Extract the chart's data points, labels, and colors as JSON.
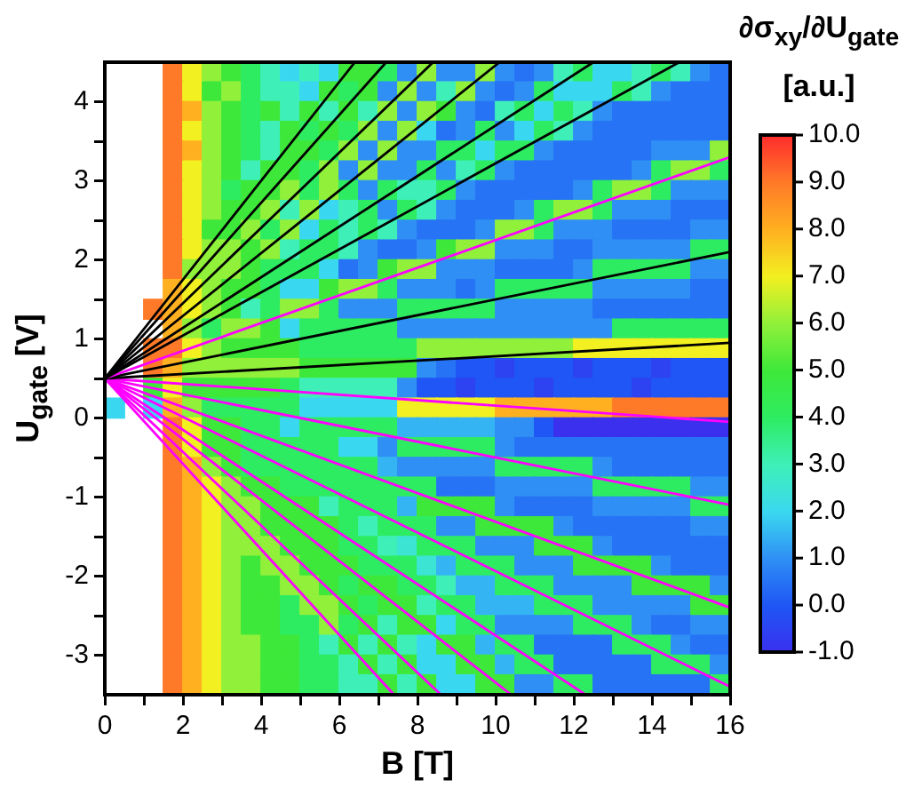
{
  "chart_data": {
    "type": "heatmap",
    "xlabel": "B [T]",
    "ylabel": "U$_{gate}$ [V]",
    "clabel": "∂σ$_{xy}$/∂U$_{gate}$ [a.u.]",
    "x": [
      0.25,
      0.75,
      1.25,
      1.75,
      2.25,
      2.75,
      3.25,
      3.75,
      4.25,
      4.75,
      5.25,
      5.75,
      6.25,
      6.75,
      7.25,
      7.75,
      8.25,
      8.75,
      9.25,
      9.75,
      10.25,
      10.75,
      11.25,
      11.75,
      12.25,
      12.75,
      13.25,
      13.75,
      14.25,
      14.75,
      15.25,
      15.75
    ],
    "y": [
      4.375,
      4.125,
      3.875,
      3.625,
      3.375,
      3.125,
      2.875,
      2.625,
      2.375,
      2.125,
      1.875,
      1.625,
      1.375,
      1.125,
      0.875,
      0.625,
      0.375,
      0.125,
      -0.125,
      -0.375,
      -0.625,
      -0.875,
      -1.125,
      -1.375,
      -1.625,
      -1.875,
      -2.125,
      -2.375,
      -2.625,
      -2.875,
      -3.125,
      -3.375
    ],
    "xlim": [
      0,
      16
    ],
    "ylim": [
      -3.5,
      4.5
    ],
    "xticks": [
      0,
      {
        "value": 1,
        "label": null
      },
      2,
      {
        "value": 3,
        "label": null
      },
      4,
      {
        "value": 5,
        "label": null
      },
      6,
      {
        "value": 7,
        "label": null
      },
      8,
      {
        "value": 9,
        "label": null
      },
      10,
      {
        "value": 11,
        "label": null
      },
      12,
      {
        "value": 13,
        "label": null
      },
      14,
      {
        "value": 15,
        "label": null
      },
      16
    ],
    "yticks": [
      -3,
      {
        "value": -2.5,
        "label": null
      },
      -2,
      {
        "value": -1.5,
        "label": null
      },
      -1,
      {
        "value": -0.5,
        "label": null
      },
      0,
      {
        "value": 0.5,
        "label": null
      },
      1,
      {
        "value": 1.5,
        "label": null
      },
      2,
      {
        "value": 2.5,
        "label": null
      },
      3,
      {
        "value": 3.5,
        "label": null
      },
      4
    ],
    "clim": [
      -1,
      10
    ],
    "cticks": [
      {
        "value": -1,
        "label": "-1.0"
      },
      {
        "value": 0,
        "label": "0.0"
      },
      {
        "value": 1,
        "label": "1.0"
      },
      {
        "value": 2,
        "label": "2.0"
      },
      {
        "value": 3,
        "label": "3.0"
      },
      {
        "value": 4,
        "label": "4.0"
      },
      {
        "value": 5,
        "label": "5.0"
      },
      {
        "value": 6,
        "label": "6.0"
      },
      {
        "value": 7,
        "label": "7.0"
      },
      {
        "value": 8,
        "label": "8.0"
      },
      {
        "value": 9,
        "label": "9.0"
      },
      {
        "value": 10,
        "label": "10.0"
      }
    ],
    "marker": "none",
    "cells": [
      [
        null,
        null,
        null,
        9,
        7,
        6,
        5,
        4,
        3,
        2,
        3,
        2,
        5,
        5,
        4,
        1,
        6,
        1,
        1,
        6,
        1,
        0.5,
        1,
        3,
        4,
        2,
        2,
        3,
        4,
        3,
        1,
        0.5
      ],
      [
        null,
        null,
        null,
        9,
        7,
        5,
        6,
        4,
        3,
        3,
        2,
        5,
        4,
        5,
        1,
        6,
        1,
        3,
        6,
        1,
        0.5,
        1,
        4,
        2,
        2,
        2,
        4,
        3,
        1,
        0.5,
        0.5,
        0.5
      ],
      [
        null,
        null,
        null,
        9,
        8,
        6,
        5,
        4,
        5,
        3,
        5,
        3,
        5,
        3,
        6,
        1,
        6,
        5,
        1,
        0.5,
        3,
        4,
        2,
        4,
        3,
        1,
        0.5,
        0.5,
        0.5,
        0.5,
        0.5,
        0.5
      ],
      [
        null,
        null,
        null,
        9,
        7,
        6,
        5,
        4,
        3,
        5,
        4,
        5,
        4,
        6,
        1,
        6,
        2,
        0.5,
        1,
        4,
        1,
        2,
        4,
        3,
        1,
        0.5,
        0.5,
        0.5,
        0.5,
        0.5,
        0.5,
        0.5
      ],
      [
        null,
        null,
        null,
        9,
        8,
        6,
        5,
        4,
        3,
        5,
        5,
        4,
        6,
        1,
        6,
        1,
        1,
        4,
        4,
        2,
        4,
        4,
        1,
        0.5,
        0.5,
        0.5,
        0.5,
        0.5,
        1,
        1,
        1,
        6
      ],
      [
        null,
        null,
        null,
        9,
        7,
        6,
        5,
        3,
        5,
        5,
        4,
        6,
        1,
        6,
        1,
        1,
        4,
        1,
        3,
        4,
        1,
        0.5,
        0.5,
        0.5,
        0.5,
        0.5,
        0.5,
        1,
        4,
        6,
        6,
        4
      ],
      [
        null,
        null,
        null,
        9,
        7,
        6,
        4,
        5,
        5,
        6,
        4,
        6,
        4,
        1,
        4,
        3,
        3,
        4,
        1,
        0.5,
        0.5,
        0.5,
        0.5,
        0.5,
        1,
        4,
        6,
        6,
        4,
        1,
        1,
        1
      ],
      [
        null,
        null,
        null,
        9,
        7,
        6,
        5,
        5,
        6,
        3,
        6,
        2,
        3,
        4,
        1,
        4,
        3,
        1,
        0.5,
        0.5,
        0.5,
        1,
        4,
        6,
        6,
        4,
        1,
        1,
        1,
        0.5,
        0.5,
        0.5
      ],
      [
        null,
        null,
        null,
        9,
        7,
        5,
        5,
        6,
        4,
        6,
        2,
        4,
        3,
        4,
        3,
        1,
        0.5,
        0.5,
        0.5,
        1,
        6,
        6,
        4,
        1,
        1,
        1,
        0.5,
        0.5,
        0.5,
        0.5,
        1,
        1
      ],
      [
        null,
        null,
        null,
        9,
        7,
        6,
        6,
        5,
        6,
        3,
        4,
        4,
        3,
        1,
        0.5,
        0.5,
        1,
        5,
        6,
        6,
        1,
        1,
        1,
        0.5,
        0.5,
        1,
        1,
        1,
        1,
        1,
        4,
        4
      ],
      [
        null,
        null,
        null,
        9,
        6,
        6,
        6,
        5,
        4,
        4,
        4,
        2,
        0.5,
        1,
        5,
        6,
        6,
        1,
        1,
        1,
        0.5,
        0.5,
        0.5,
        0.5,
        1,
        4,
        4,
        4,
        4,
        4,
        1,
        1
      ],
      [
        null,
        null,
        null,
        8,
        7,
        6,
        5,
        5,
        4,
        2,
        2,
        5,
        6,
        6,
        4,
        1,
        1,
        1,
        0.5,
        1,
        4,
        4,
        4,
        4,
        4,
        1,
        1,
        1,
        1,
        1,
        0.5,
        0.5
      ],
      [
        null,
        null,
        9,
        8,
        7,
        6,
        5,
        3,
        4,
        6,
        6,
        4,
        1,
        1,
        1,
        4,
        4,
        4,
        4,
        4,
        1,
        1,
        1,
        1,
        1,
        0.5,
        0.5,
        0.5,
        0.5,
        0.5,
        0.5,
        0.5
      ],
      [
        null,
        null,
        null,
        8,
        6,
        4,
        6,
        6,
        5,
        2,
        4,
        4,
        4,
        4,
        4,
        1,
        1,
        1,
        1,
        1,
        1,
        1,
        1,
        1,
        1,
        1,
        4,
        4,
        4,
        4,
        4,
        4
      ],
      [
        null,
        null,
        9,
        9,
        7,
        6,
        5,
        5,
        5,
        5,
        4,
        4,
        4,
        4,
        4,
        4,
        6,
        6,
        6,
        6,
        6,
        6,
        6,
        6,
        7,
        7,
        7,
        7,
        7,
        7,
        7,
        7
      ],
      [
        null,
        null,
        9,
        8,
        6,
        6,
        6,
        6,
        6,
        6,
        5,
        5,
        5,
        5,
        5,
        5,
        1,
        0.5,
        0,
        0,
        -0.5,
        0,
        0,
        0,
        -0.5,
        0,
        0,
        0,
        -0.5,
        0,
        0,
        0
      ],
      [
        null,
        null,
        5,
        7,
        5,
        5,
        5,
        5,
        5,
        4,
        3,
        3,
        3,
        3,
        3,
        1,
        0,
        0,
        -0.5,
        0,
        0,
        0,
        -0.5,
        0,
        0,
        0,
        0,
        -0.5,
        0,
        0,
        0,
        0
      ],
      [
        2,
        null,
        2,
        8,
        6,
        4,
        4,
        4,
        4,
        4,
        2,
        2,
        2,
        2,
        2,
        7,
        7,
        7,
        7,
        7,
        8,
        8,
        8,
        8,
        8,
        8,
        9,
        9,
        9,
        9,
        9,
        9
      ],
      [
        null,
        null,
        null,
        9,
        7,
        5,
        5,
        4,
        4,
        2,
        4,
        4,
        4,
        4,
        4,
        1.5,
        1.5,
        1.5,
        1.5,
        1.5,
        1,
        1,
        0,
        -1,
        -1,
        -1,
        -1,
        -1,
        -1,
        -1,
        -1,
        -1
      ],
      [
        null,
        null,
        null,
        9,
        7,
        5,
        5,
        4,
        4,
        4,
        4,
        4,
        2,
        2,
        1,
        4,
        4,
        4,
        4,
        4,
        1,
        0.5,
        0.5,
        0.5,
        0.5,
        0.5,
        0.5,
        0.5,
        0.5,
        0.5,
        0.5,
        0.5
      ],
      [
        null,
        null,
        null,
        9,
        8,
        6,
        5,
        4,
        4,
        4,
        4,
        4,
        4,
        4,
        1.5,
        1,
        1,
        1,
        1,
        1,
        4,
        4,
        4,
        4,
        4,
        1,
        0.5,
        0.5,
        0.5,
        0.5,
        0.5,
        0.5
      ],
      [
        null,
        null,
        null,
        9,
        8,
        7,
        6,
        5,
        5,
        4,
        4,
        4,
        4,
        4,
        4,
        4,
        4,
        0.5,
        0.5,
        0.5,
        1,
        1,
        1,
        1,
        1,
        4,
        4,
        4,
        4,
        4,
        1,
        1
      ],
      [
        null,
        null,
        null,
        9,
        8,
        7,
        6,
        6,
        5,
        5,
        5,
        3,
        4,
        4,
        4,
        1.5,
        5,
        5,
        5,
        5,
        1,
        0.5,
        0.5,
        0.5,
        0.5,
        1,
        1,
        1,
        1,
        1,
        4,
        4
      ],
      [
        null,
        null,
        null,
        9,
        8,
        7,
        6,
        6,
        5,
        5,
        5,
        5,
        4,
        3,
        4,
        4,
        4,
        1,
        1,
        5,
        5,
        5,
        5,
        1,
        0.5,
        0.5,
        0.5,
        0.5,
        0.5,
        0.5,
        1,
        1
      ],
      [
        null,
        null,
        null,
        9,
        8,
        7,
        6,
        6,
        6,
        5,
        5,
        5,
        4,
        4,
        3,
        2.5,
        4,
        4,
        4,
        1,
        1,
        1,
        5,
        5,
        5,
        1,
        0.5,
        0.5,
        0.5,
        0.5,
        0.5,
        0.5
      ],
      [
        null,
        null,
        null,
        9,
        8,
        7,
        6,
        5,
        6,
        6,
        5,
        5,
        5,
        4,
        4,
        4,
        2.5,
        1.5,
        4,
        4,
        4,
        1,
        1,
        1,
        5,
        5,
        5,
        5,
        1,
        0.5,
        0.5,
        0.5
      ],
      [
        null,
        null,
        null,
        9,
        8,
        7,
        6,
        5,
        5,
        6,
        6,
        5,
        4,
        5,
        5,
        4,
        4,
        3,
        1.5,
        1.5,
        4,
        4,
        4,
        1,
        1,
        1,
        1,
        5,
        5,
        5,
        5,
        1
      ],
      [
        null,
        null,
        null,
        9,
        8,
        7,
        6,
        5,
        5,
        4,
        6,
        6,
        5,
        4,
        5,
        5,
        3,
        4,
        4,
        1.5,
        1.5,
        1.5,
        4,
        4,
        4,
        1,
        1,
        1,
        1,
        1,
        5,
        5
      ],
      [
        null,
        null,
        null,
        9,
        8,
        7,
        6,
        5,
        5,
        4,
        4,
        6,
        4,
        5,
        3,
        5,
        5,
        2,
        4,
        4,
        1,
        1,
        1,
        1,
        4,
        4,
        4,
        1,
        0.5,
        0.5,
        1,
        1
      ],
      [
        null,
        null,
        null,
        9,
        8,
        7,
        6,
        6,
        5,
        5,
        4,
        3,
        5,
        3,
        5,
        3,
        2,
        5,
        5,
        1.5,
        4,
        4,
        0.5,
        0.5,
        0.5,
        0.5,
        4,
        4,
        4,
        1,
        0.5,
        0.5
      ],
      [
        null,
        null,
        null,
        9,
        8,
        7,
        6,
        6,
        5,
        5,
        4,
        4,
        3,
        5,
        3,
        5,
        2,
        2,
        5,
        5,
        1.5,
        4,
        4,
        0.5,
        0.5,
        0.5,
        0.5,
        0.5,
        4,
        4,
        4,
        1
      ],
      [
        null,
        null,
        null,
        9,
        8,
        7,
        6,
        6,
        5,
        5,
        4,
        4,
        3,
        3,
        5,
        3,
        5,
        2,
        2,
        5,
        5,
        1,
        1,
        4,
        4,
        0.5,
        0.5,
        0.5,
        0.5,
        0.5,
        0.5,
        4
      ]
    ],
    "series": [
      {
        "type": "line",
        "color": "#000000",
        "x": [
          0,
          6.4
        ],
        "values": [
          0.5,
          4.5
        ]
      },
      {
        "type": "line",
        "color": "#000000",
        "x": [
          0,
          7.2
        ],
        "values": [
          0.5,
          4.5
        ]
      },
      {
        "type": "line",
        "color": "#000000",
        "x": [
          0,
          8.4
        ],
        "values": [
          0.5,
          4.5
        ]
      },
      {
        "type": "line",
        "color": "#000000",
        "x": [
          0,
          10.1
        ],
        "values": [
          0.5,
          4.5
        ]
      },
      {
        "type": "line",
        "color": "#000000",
        "x": [
          0,
          12.5
        ],
        "values": [
          0.5,
          4.5
        ]
      },
      {
        "type": "line",
        "color": "#000000",
        "x": [
          0,
          14.7
        ],
        "values": [
          0.5,
          4.5
        ]
      },
      {
        "type": "line",
        "color": "#ff00ff",
        "x": [
          0,
          16
        ],
        "values": [
          0.5,
          3.3
        ]
      },
      {
        "type": "line",
        "color": "#000000",
        "x": [
          0,
          16
        ],
        "values": [
          0.5,
          2.1
        ]
      },
      {
        "type": "line",
        "color": "#000000",
        "x": [
          0,
          16
        ],
        "values": [
          0.5,
          0.95
        ]
      },
      {
        "type": "line",
        "color": "#ff00ff",
        "x": [
          0,
          16
        ],
        "values": [
          0.5,
          -0.05
        ]
      },
      {
        "type": "line",
        "color": "#ff00ff",
        "x": [
          0,
          16
        ],
        "values": [
          0.5,
          -1.1
        ]
      },
      {
        "type": "line",
        "color": "#ff00ff",
        "x": [
          0,
          16
        ],
        "values": [
          0.5,
          -2.4
        ]
      },
      {
        "type": "line",
        "color": "#ff00ff",
        "x": [
          0,
          16
        ],
        "values": [
          0.5,
          -3.4
        ]
      },
      {
        "type": "line",
        "color": "#ff00ff",
        "x": [
          0,
          12.3
        ],
        "values": [
          0.5,
          -3.5
        ]
      },
      {
        "type": "line",
        "color": "#ff00ff",
        "x": [
          0,
          10.4
        ],
        "values": [
          0.5,
          -3.5
        ]
      },
      {
        "type": "line",
        "color": "#ff00ff",
        "x": [
          0,
          8.6
        ],
        "values": [
          0.5,
          -3.5
        ]
      },
      {
        "type": "line",
        "color": "#ff00ff",
        "x": [
          0,
          7.4
        ],
        "values": [
          0.5,
          -3.5
        ]
      }
    ]
  }
}
